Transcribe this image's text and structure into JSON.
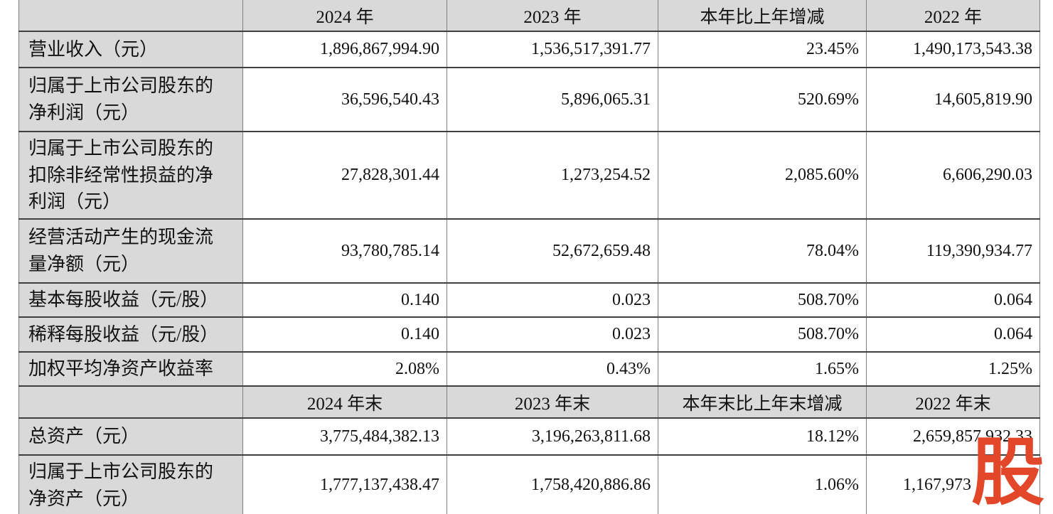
{
  "meta": {
    "header_bg": "#d9d9d9",
    "border_dark": "#3f3f3f",
    "border_light": "#7f7f7f",
    "watermark_color": "#e2472a"
  },
  "watermark": {
    "text": "股"
  },
  "table": {
    "annual": {
      "col_headers": [
        "2024 年",
        "2023 年",
        "本年比上年增减",
        "2022 年"
      ],
      "rows": [
        {
          "label": "营业收入（元）",
          "v2024": "1,896,867,994.90",
          "v2023": "1,536,517,391.77",
          "change": "23.45%",
          "v2022": "1,490,173,543.38"
        },
        {
          "label": "归属于上市公司股东的\n净利润（元）",
          "v2024": "36,596,540.43",
          "v2023": "5,896,065.31",
          "change": "520.69%",
          "v2022": "14,605,819.90"
        },
        {
          "label": "归属于上市公司股东的\n扣除非经常性损益的净\n利润（元）",
          "v2024": "27,828,301.44",
          "v2023": "1,273,254.52",
          "change": "2,085.60%",
          "v2022": "6,606,290.03"
        },
        {
          "label": "经营活动产生的现金流\n量净额（元）",
          "v2024": "93,780,785.14",
          "v2023": "52,672,659.48",
          "change": "78.04%",
          "v2022": "119,390,934.77"
        },
        {
          "label": "基本每股收益（元/股）",
          "v2024": "0.140",
          "v2023": "0.023",
          "change": "508.70%",
          "v2022": "0.064"
        },
        {
          "label": "稀释每股收益（元/股）",
          "v2024": "0.140",
          "v2023": "0.023",
          "change": "508.70%",
          "v2022": "0.064"
        },
        {
          "label": "加权平均净资产收益率",
          "v2024": "2.08%",
          "v2023": "0.43%",
          "change": "1.65%",
          "v2022": "1.25%"
        }
      ]
    },
    "year_end": {
      "col_headers": [
        "2024 年末",
        "2023 年末",
        "本年末比上年末增减",
        "2022 年末"
      ],
      "rows": [
        {
          "label": "总资产（元）",
          "v2024": "3,775,484,382.13",
          "v2023": "3,196,263,811.68",
          "change": "18.12%",
          "v2022": "2,659,857,932.33"
        },
        {
          "label": "归属于上市公司股东的\n净资产（元）",
          "v2024": "1,777,137,438.47",
          "v2023": "1,758,420,886.86",
          "change": "1.06%",
          "v2022": "1,167,973"
        }
      ]
    }
  }
}
